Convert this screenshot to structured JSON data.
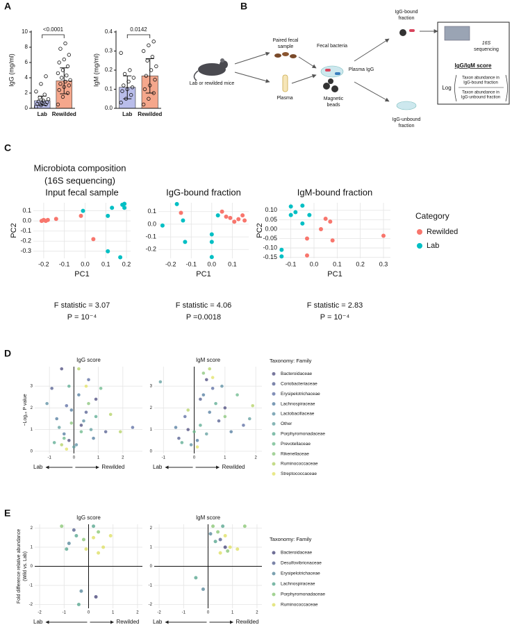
{
  "panel_labels": [
    "A",
    "B",
    "C",
    "D",
    "E"
  ],
  "diagram": {
    "mice": [
      "Lab or rewilded mice"
    ],
    "fecal": [
      "Paired fecal",
      "sample"
    ],
    "plasma": [
      "Plasma"
    ],
    "bacteria": [
      "Fecal bacteria"
    ],
    "igg": [
      "Plasma IgG"
    ],
    "beads": [
      "Magnetic",
      "beads"
    ],
    "bound": [
      "IgG-bound",
      "fraction"
    ],
    "unbound": [
      "IgG-unbound",
      "fraction"
    ],
    "sequencing": [
      "16S",
      "sequencing"
    ],
    "score_title": "IgG/IgM score",
    "log": "Log",
    "numerator": [
      "Taxon abundance in",
      "IgG-bound fraction"
    ],
    "denominator": [
      "Taxon abundance in",
      "IgG-unbound fraction"
    ]
  },
  "chart_data": [
    {
      "type": "bar",
      "ylabel": "IgG (mg/ml)",
      "categories": [
        "Lab",
        "Rewilded"
      ],
      "values": [
        1.0,
        3.6
      ],
      "errors": [
        0.6,
        1.7
      ],
      "colors": [
        "#b9bdea",
        "#f5a78c"
      ],
      "points": [
        [
          0.2,
          0.4,
          0.5,
          0.6,
          0.7,
          0.8,
          0.9,
          1.0,
          1.2,
          1.4,
          1.8,
          2.2,
          3.2,
          4.2
        ],
        [
          0.5,
          1.5,
          2.0,
          2.4,
          2.8,
          3.0,
          3.2,
          3.5,
          3.7,
          4.0,
          4.3,
          4.6,
          5.0,
          5.5,
          6.0,
          6.4,
          7.0,
          7.8,
          8.5
        ]
      ],
      "annotation": "<0.0001",
      "ylim": [
        0,
        10
      ],
      "yticks": [
        0,
        2,
        4,
        6,
        8,
        10
      ]
    },
    {
      "type": "bar",
      "ylabel": "IgM (mg/ml)",
      "categories": [
        "Lab",
        "Rewilded"
      ],
      "values": [
        0.11,
        0.17
      ],
      "errors": [
        0.06,
        0.09
      ],
      "colors": [
        "#b9bdea",
        "#f5a78c"
      ],
      "points": [
        [
          0.03,
          0.05,
          0.07,
          0.09,
          0.1,
          0.11,
          0.12,
          0.14,
          0.16,
          0.18,
          0.2,
          0.29
        ],
        [
          0.02,
          0.05,
          0.08,
          0.1,
          0.12,
          0.15,
          0.17,
          0.2,
          0.22,
          0.25,
          0.27,
          0.3,
          0.33,
          0.35
        ]
      ],
      "annotation": "0.0142",
      "ylim": [
        0,
        0.4
      ],
      "yticks": [
        {
          "value": 0,
          "label": "0.0"
        },
        0.1,
        0.2,
        0.3,
        0.4
      ]
    },
    {
      "type": "scatter",
      "suptitle": [
        "Microbiota composition",
        "(16S sequencing)"
      ],
      "title": "Input fecal sample",
      "xlabel": "PC1",
      "ylabel": "PC2",
      "grid": true,
      "series": [
        {
          "color": "#f8766d",
          "x": [
            -0.21,
            -0.2,
            -0.19,
            -0.18,
            -0.14,
            -0.02,
            0.04
          ],
          "values": [
            0.0,
            0.01,
            0.0,
            0.01,
            0.02,
            0.05,
            -0.18
          ]
        },
        {
          "color": "#00bfc4",
          "x": [
            -0.01,
            0.11,
            0.13,
            0.18,
            0.19,
            0.19,
            0.11,
            0.17
          ],
          "values": [
            0.1,
            0.05,
            0.13,
            0.16,
            0.17,
            0.13,
            -0.3,
            -0.36
          ]
        }
      ],
      "xlim": [
        -0.25,
        0.22
      ],
      "xticks": [
        -0.2,
        -0.1,
        {
          "value": 0,
          "label": "0.0"
        },
        0.1,
        0.2
      ],
      "ylim": [
        -0.37,
        0.18
      ],
      "yticks": [
        0.1,
        {
          "value": 0,
          "label": "0.0"
        },
        -0.1,
        -0.2,
        -0.3
      ],
      "notes": [
        "F statistic = 3.07",
        "P = 10⁻⁴"
      ]
    },
    {
      "type": "scatter",
      "title": "IgG-bound fraction",
      "xlabel": "PC1",
      "grid": true,
      "series": [
        {
          "color": "#f8766d",
          "x": [
            -0.15,
            0.05,
            0.07,
            0.09,
            0.11,
            0.13,
            0.15,
            0.16
          ],
          "values": [
            0.09,
            0.1,
            0.06,
            0.05,
            0.02,
            0.04,
            0.07,
            0.03
          ]
        },
        {
          "color": "#00bfc4",
          "x": [
            -0.17,
            -0.24,
            -0.14,
            -0.13,
            0.0,
            0.0,
            0.0,
            0.03
          ],
          "values": [
            0.16,
            -0.01,
            0.03,
            -0.14,
            -0.08,
            -0.14,
            -0.26,
            0.07
          ]
        }
      ],
      "xlim": [
        -0.26,
        0.18
      ],
      "xticks": [
        -0.2,
        -0.1,
        {
          "value": 0,
          "label": "0.0"
        },
        0.1
      ],
      "ylim": [
        -0.27,
        0.17
      ],
      "yticks": [
        0.1,
        {
          "value": 0,
          "label": "0.0"
        },
        -0.1,
        -0.2
      ],
      "notes": [
        "F statistic = 4.06",
        "P =0.0018"
      ]
    },
    {
      "type": "scatter",
      "title": "IgM-bound fraction",
      "xlabel": "PC1",
      "ylabel": "PC2",
      "grid": true,
      "legend_title": "Category",
      "series": [
        {
          "name": "Rewilded",
          "color": "#f8766d",
          "x": [
            0.05,
            0.07,
            0.03,
            -0.03,
            0.08,
            0.3,
            -0.03
          ],
          "values": [
            0.055,
            0.04,
            0.0,
            -0.05,
            -0.06,
            -0.035,
            -0.14
          ]
        },
        {
          "name": "Lab",
          "color": "#00bfc4",
          "x": [
            -0.1,
            -0.05,
            -0.08,
            -0.1,
            -0.02,
            -0.05,
            -0.14,
            -0.14
          ],
          "values": [
            0.12,
            0.125,
            0.09,
            0.075,
            0.075,
            0.03,
            -0.11,
            -0.145
          ]
        }
      ],
      "xlim": [
        -0.15,
        0.33
      ],
      "xticks": [
        -0.1,
        {
          "value": 0,
          "label": "0.0"
        },
        0.1,
        0.2,
        0.3
      ],
      "ylim": [
        -0.155,
        0.14
      ],
      "yticks": [
        {
          "value": 0.1,
          "label": "0.10"
        },
        0.05,
        {
          "value": 0,
          "label": "0.00"
        },
        -0.05,
        {
          "value": -0.1,
          "label": "-0.10"
        },
        -0.15
      ],
      "notes": [
        "F statistic = 2.83",
        "P = 10⁻⁴"
      ]
    },
    {
      "type": "scatter",
      "title": "IgG score",
      "ylabel": "−Log₁₀ P value",
      "grid": true,
      "zero_lines": [
        "x"
      ],
      "x_left_label": "Lab",
      "x_right_label": "Rewilded",
      "series": [
        {
          "color": "#4b4a7c",
          "x": [
            -0.5,
            0.3,
            0.9,
            -0.2
          ],
          "values": [
            3.8,
            1.2,
            2.4,
            0.5
          ]
        },
        {
          "color": "#525c8f",
          "x": [
            -0.9,
            0.5,
            1.3
          ],
          "values": [
            2.9,
            1.8,
            0.9
          ]
        },
        {
          "color": "#5869a0",
          "x": [
            -0.3,
            0.6,
            2.4
          ],
          "values": [
            2.1,
            3.3,
            1.1
          ]
        },
        {
          "color": "#4f7a9e",
          "x": [
            -0.7,
            -0.4,
            0.2,
            0.8,
            -0.1
          ],
          "values": [
            1.5,
            0.8,
            2.6,
            0.6,
            1.9
          ]
        },
        {
          "color": "#5a8ea2",
          "x": [
            -1.1,
            0.1,
            0.4
          ],
          "values": [
            2.2,
            0.3,
            1.4
          ]
        },
        {
          "color": "#5f9e9e",
          "x": [
            -0.6,
            0.7,
            0.0
          ],
          "values": [
            1.1,
            1.0,
            0.2
          ]
        },
        {
          "color": "#58a98f",
          "x": [
            -0.2,
            0.9,
            -0.8
          ],
          "values": [
            3.0,
            1.6,
            0.4
          ]
        },
        {
          "color": "#6ab88a",
          "x": [
            -0.4,
            1.1,
            0.3
          ],
          "values": [
            0.6,
            2.9,
            0.9
          ]
        },
        {
          "color": "#88c47a",
          "x": [
            -0.1,
            0.6
          ],
          "values": [
            1.3,
            2.2
          ]
        },
        {
          "color": "#b2d062",
          "x": [
            1.5,
            0.2,
            -0.5,
            1.9
          ],
          "values": [
            1.7,
            3.8,
            0.3,
            0.9
          ]
        },
        {
          "color": "#e2e263",
          "x": [
            0.5,
            -0.3
          ],
          "values": [
            3.0,
            0.1
          ]
        }
      ],
      "xlim": [
        -1.6,
        2.8
      ],
      "xticks": [
        -1,
        0,
        1,
        2
      ],
      "ylim": [
        -0.1,
        3.9
      ],
      "yticks": [
        0,
        1,
        2,
        3
      ]
    },
    {
      "type": "scatter",
      "title": "IgM score",
      "grid": true,
      "zero_lines": [
        "x"
      ],
      "x_left_label": "Lab",
      "x_right_label": "Rewilded",
      "legend_title": "Taxonomy: Family",
      "series": [
        {
          "name": "Bacteroidaceae",
          "color": "#4b4a7c",
          "x": [
            0.4,
            -0.2,
            1.0
          ],
          "values": [
            3.3,
            1.0,
            2.0
          ]
        },
        {
          "name": "Coriobacteriaceae",
          "color": "#525c8f",
          "x": [
            0.8,
            -0.5,
            0.2
          ],
          "values": [
            1.4,
            0.6,
            2.4
          ]
        },
        {
          "name": "Erysipelotrichaceae",
          "color": "#5869a0",
          "x": [
            0.6,
            1.6,
            -0.3
          ],
          "values": [
            2.9,
            1.2,
            1.6
          ]
        },
        {
          "name": "Lachnospiraceae",
          "color": "#4f7a9e",
          "x": [
            -0.6,
            0.1,
            0.5,
            1.2,
            0.3
          ],
          "values": [
            1.1,
            0.5,
            1.8,
            0.9,
            2.6
          ]
        },
        {
          "name": "Lactobacillaceae",
          "color": "#5a8ea2",
          "x": [
            0.9,
            -0.1
          ],
          "values": [
            3.0,
            0.3
          ]
        },
        {
          "name": "Other",
          "color": "#5f9e9e",
          "x": [
            -1.1,
            0.4,
            1.8
          ],
          "values": [
            3.2,
            0.8,
            1.5
          ]
        },
        {
          "name": "Porphyromonadaceae",
          "color": "#58a98f",
          "x": [
            0.7,
            -0.4,
            0.2
          ],
          "values": [
            2.2,
            0.4,
            1.2
          ]
        },
        {
          "name": "Prevotellaceae",
          "color": "#6ab88a",
          "x": [
            1.4,
            0.0
          ],
          "values": [
            2.6,
            0.9
          ]
        },
        {
          "name": "Rikenellaceae",
          "color": "#88c47a",
          "x": [
            0.3,
            1.0
          ],
          "values": [
            3.6,
            1.6
          ]
        },
        {
          "name": "Ruminococcaceae",
          "color": "#b2d062",
          "x": [
            0.5,
            1.9,
            -0.2
          ],
          "values": [
            3.8,
            2.1,
            1.9
          ]
        },
        {
          "name": "Streptococcaceae",
          "color": "#e2e263",
          "x": [
            0.6,
            0.1
          ],
          "values": [
            3.4,
            0.2
          ]
        }
      ],
      "xlim": [
        -1.3,
        2.2
      ],
      "xticks": [
        -1,
        0,
        1,
        2
      ],
      "ylim": [
        -0.1,
        3.9
      ],
      "yticks": [
        0,
        1,
        2,
        3
      ]
    },
    {
      "type": "scatter",
      "title": "IgG score",
      "ylabel": [
        "Fold difference relative abundance",
        "(Wild vs. Lab)"
      ],
      "grid": true,
      "zero_lines": [
        "x",
        "y"
      ],
      "x_left_label": "Lab",
      "x_right_label": "Rewilded",
      "series": [
        {
          "color": "#4b4a7c",
          "x": [
            0.3
          ],
          "values": [
            -1.6
          ]
        },
        {
          "color": "#5a6592",
          "x": [
            -0.6
          ],
          "values": [
            1.9
          ]
        },
        {
          "color": "#5a8a9c",
          "x": [
            -0.8,
            -0.3
          ],
          "values": [
            1.2,
            -1.3
          ]
        },
        {
          "color": "#5aa891",
          "x": [
            -0.5,
            -0.9,
            0.2,
            -0.4
          ],
          "values": [
            1.6,
            0.9,
            2.1,
            -2.0
          ]
        },
        {
          "color": "#8cc878",
          "x": [
            -1.1,
            -0.2,
            0.4
          ],
          "values": [
            2.1,
            1.4,
            1.8
          ]
        },
        {
          "color": "#dfe066",
          "x": [
            0.2,
            0.6,
            0.4,
            0.9,
            -0.1
          ],
          "values": [
            1.5,
            1.0,
            0.7,
            1.6,
            0.9
          ]
        }
      ],
      "xlim": [
        -2.2,
        2.2
      ],
      "xticks": [
        -2,
        -1,
        0,
        1,
        2
      ],
      "ylim": [
        -2.2,
        2.2
      ],
      "yticks": [
        -2,
        -1,
        0,
        1,
        2
      ]
    },
    {
      "type": "scatter",
      "title": "IgM score",
      "grid": true,
      "zero_lines": [
        "x",
        "y"
      ],
      "x_left_label": "Lab",
      "x_right_label": "Rewilded",
      "legend_title": "Taxonomy: Family",
      "series": [
        {
          "name": "Bacteroidaceae",
          "color": "#4b4a7c",
          "x": [
            0.7
          ],
          "values": [
            1.0
          ]
        },
        {
          "name": "Desulfovibrionaceae",
          "color": "#5a6592",
          "x": [
            0.5
          ],
          "values": [
            1.4
          ]
        },
        {
          "name": "Erysipelotrichaceae",
          "color": "#5a8a9c",
          "x": [
            0.1,
            -0.2
          ],
          "values": [
            1.7,
            -1.2
          ]
        },
        {
          "name": "Lachnospiraceae",
          "color": "#5aa891",
          "x": [
            0.3,
            0.6,
            -0.5
          ],
          "values": [
            1.3,
            2.1,
            -0.6
          ]
        },
        {
          "name": "Porphyromonadaceae",
          "color": "#8cc878",
          "x": [
            0.2,
            0.8,
            1.5,
            0.4
          ],
          "values": [
            2.1,
            0.8,
            2.1,
            1.8
          ]
        },
        {
          "name": "Ruminococcaceae",
          "color": "#dfe066",
          "x": [
            0.5,
            0.9,
            1.2,
            0.7
          ],
          "values": [
            0.7,
            1.0,
            0.9,
            1.6
          ]
        }
      ],
      "xlim": [
        -2.2,
        2.2
      ],
      "xticks": [
        -2,
        -1,
        0,
        1,
        2
      ],
      "ylim": [
        -2.2,
        2.2
      ],
      "yticks": [
        -2,
        -1,
        0,
        1,
        2
      ]
    }
  ]
}
